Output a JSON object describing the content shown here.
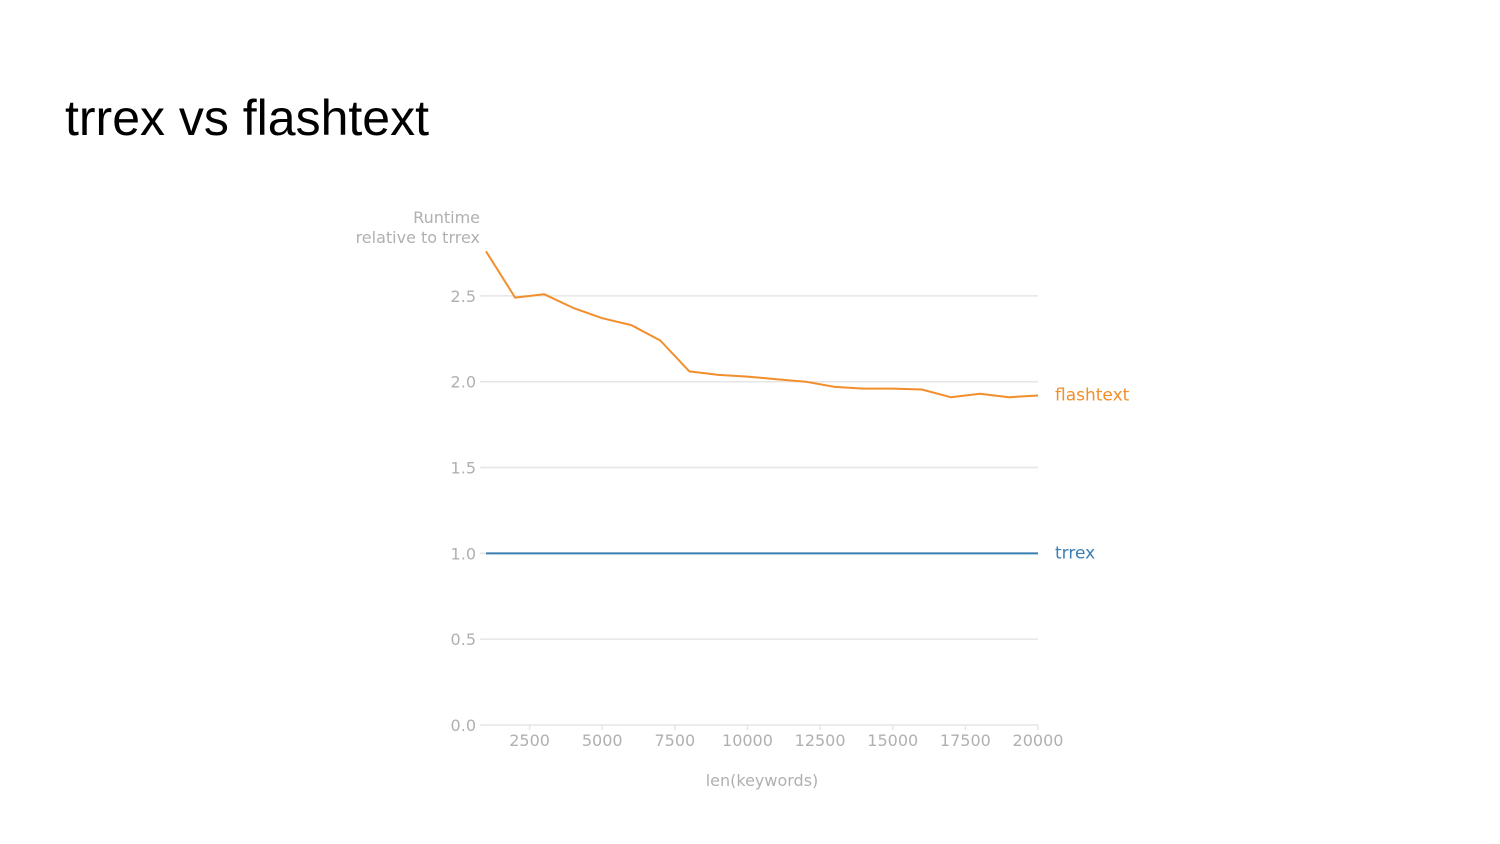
{
  "slide": {
    "title": "trrex vs flashtext"
  },
  "chart_data": {
    "type": "line",
    "title": "",
    "xlabel": "len(keywords)",
    "ylabel_lines": [
      "Runtime",
      "relative to trrex"
    ],
    "xlim": [
      1000,
      20000
    ],
    "ylim": [
      0,
      2.75
    ],
    "xticks": [
      2500,
      5000,
      7500,
      10000,
      12500,
      15000,
      17500,
      20000
    ],
    "yticks": [
      0.0,
      0.5,
      1.0,
      1.5,
      2.0,
      2.5
    ],
    "grid": "horizontal",
    "legend": "inline-right",
    "series": [
      {
        "name": "flashtext",
        "color": "#f28e2b",
        "x": [
          1000,
          2000,
          3000,
          4000,
          5000,
          6000,
          7000,
          8000,
          9000,
          10000,
          11000,
          12000,
          13000,
          14000,
          15000,
          16000,
          17000,
          18000,
          19000,
          20000
        ],
        "y": [
          2.76,
          2.49,
          2.51,
          2.43,
          2.37,
          2.33,
          2.24,
          2.06,
          2.04,
          2.03,
          2.015,
          2.0,
          1.97,
          1.96,
          1.96,
          1.955,
          1.91,
          1.93,
          1.91,
          1.92
        ]
      },
      {
        "name": "trrex",
        "color": "#3a7fb4",
        "x": [
          1000,
          20000
        ],
        "y": [
          1.0,
          1.0
        ]
      }
    ]
  },
  "colors": {
    "axis_text": "#b0b0b0",
    "grid": "#e6e6e6"
  }
}
